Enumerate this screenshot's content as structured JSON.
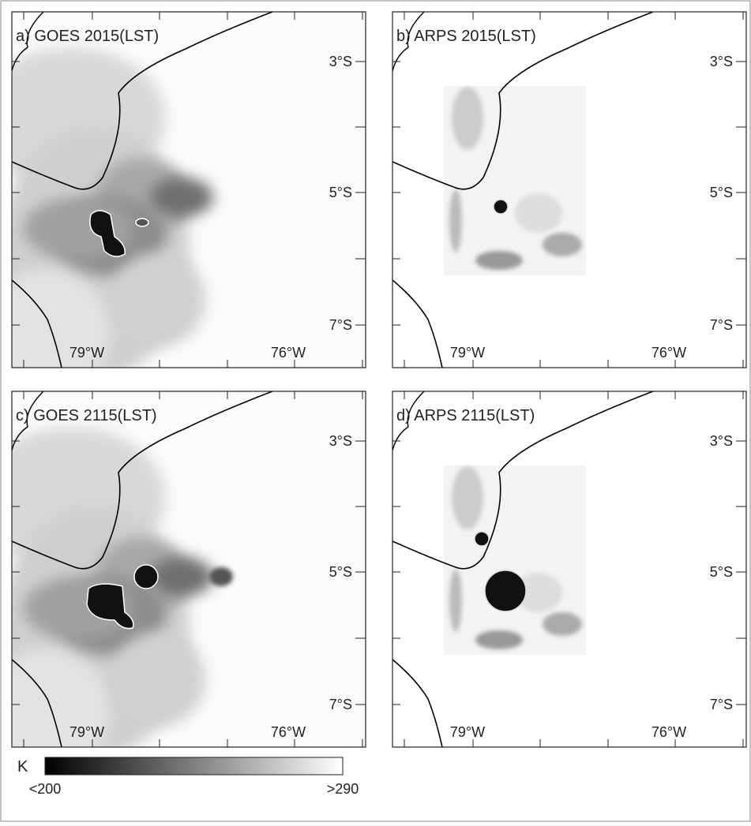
{
  "panels": [
    {
      "title": "a) GOES 2015(LST)",
      "lat_labels": [
        "3°S",
        "5°S",
        "7°S"
      ],
      "lon_labels": [
        "79°W",
        "76°W"
      ],
      "kind": "goes",
      "time": "early"
    },
    {
      "title": "b) ARPS 2015(LST)",
      "lat_labels": [
        "3°S",
        "5°S",
        "7°S"
      ],
      "lon_labels": [
        "79°W",
        "76°W"
      ],
      "kind": "arps",
      "time": "early"
    },
    {
      "title": "c) GOES 2115(LST)",
      "lat_labels": [
        "3°S",
        "5°S",
        "7°S"
      ],
      "lon_labels": [
        "79°W",
        "76°W"
      ],
      "kind": "goes",
      "time": "late"
    },
    {
      "title": "d) ARPS 2115(LST)",
      "lat_labels": [
        "3°S",
        "5°S",
        "7°S"
      ],
      "lon_labels": [
        "79°W",
        "76°W"
      ],
      "kind": "arps",
      "time": "late"
    }
  ],
  "colorbar": {
    "unit": "K",
    "min_label": "<200",
    "max_label": ">290"
  }
}
